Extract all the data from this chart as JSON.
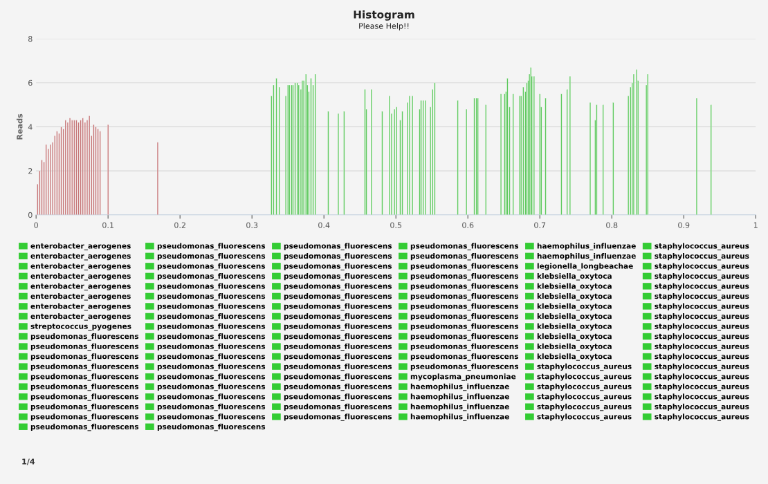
{
  "chart_data": {
    "type": "bar",
    "title": "Histogram",
    "subtitle": "Please Help!!",
    "ylabel": "Reads",
    "xlim": [
      0,
      1
    ],
    "xticks": [
      0,
      0.1,
      0.2,
      0.3,
      0.4,
      0.5,
      0.6,
      0.7,
      0.8,
      0.9,
      1
    ],
    "ylim": [
      0,
      8
    ],
    "yticks": [
      0,
      2,
      4,
      6,
      8
    ],
    "grid": "y",
    "legend": "bottom",
    "annotations": [
      "1/4"
    ],
    "series": [
      {
        "color": "#b9585a",
        "x": [
          0.002,
          0.005,
          0.008,
          0.011,
          0.014,
          0.017,
          0.02,
          0.023,
          0.026,
          0.029,
          0.032,
          0.035,
          0.038,
          0.041,
          0.044,
          0.047,
          0.05,
          0.053,
          0.056,
          0.059,
          0.062,
          0.065,
          0.068,
          0.071,
          0.074,
          0.077,
          0.08,
          0.083,
          0.086,
          0.089,
          0.1,
          0.169
        ],
        "values": [
          1.4,
          2.0,
          2.5,
          2.4,
          3.2,
          3.0,
          3.2,
          3.3,
          3.6,
          3.8,
          3.7,
          4.0,
          3.9,
          4.3,
          4.2,
          4.4,
          4.3,
          4.3,
          4.3,
          4.2,
          4.3,
          4.4,
          4.2,
          4.3,
          4.5,
          3.6,
          4.1,
          4.0,
          3.9,
          3.8,
          4.1,
          3.3
        ]
      },
      {
        "color": "#3fbf3f",
        "x": [
          0.327,
          0.33,
          0.334,
          0.338,
          0.347,
          0.35,
          0.352,
          0.355,
          0.357,
          0.36,
          0.363,
          0.365,
          0.368,
          0.37,
          0.372,
          0.375,
          0.377,
          0.379,
          0.382,
          0.385,
          0.388,
          0.406,
          0.42,
          0.428,
          0.457,
          0.459,
          0.466,
          0.481,
          0.491,
          0.494,
          0.498,
          0.501,
          0.506,
          0.509,
          0.516,
          0.519,
          0.523,
          0.533,
          0.535,
          0.538,
          0.541,
          0.548,
          0.551,
          0.554,
          0.586,
          0.598,
          0.609,
          0.612,
          0.614,
          0.625,
          0.646,
          0.651,
          0.653,
          0.655,
          0.658,
          0.663,
          0.672,
          0.674,
          0.677,
          0.68,
          0.682,
          0.684,
          0.6855,
          0.6875,
          0.689,
          0.692,
          0.7,
          0.702,
          0.708,
          0.73,
          0.738,
          0.742,
          0.77,
          0.777,
          0.779,
          0.788,
          0.802,
          0.823,
          0.826,
          0.8285,
          0.8305,
          0.8345,
          0.8365,
          0.848,
          0.85,
          0.918,
          0.938
        ],
        "values": [
          5.4,
          5.9,
          6.2,
          5.8,
          5.4,
          5.9,
          5.9,
          5.9,
          5.9,
          6.0,
          6.0,
          5.9,
          5.7,
          6.1,
          6.1,
          6.4,
          5.9,
          5.6,
          6.2,
          5.9,
          6.4,
          4.7,
          4.6,
          4.7,
          5.7,
          4.8,
          5.7,
          4.7,
          5.4,
          4.6,
          4.8,
          4.9,
          4.3,
          4.7,
          5.1,
          5.4,
          5.4,
          4.8,
          5.2,
          5.2,
          5.2,
          4.9,
          5.7,
          6.0,
          5.2,
          4.8,
          5.3,
          5.3,
          5.3,
          5.0,
          5.5,
          5.5,
          5.6,
          6.2,
          4.9,
          5.5,
          5.4,
          5.4,
          5.8,
          5.6,
          6.0,
          6.1,
          6.4,
          6.7,
          6.3,
          6.3,
          5.5,
          4.9,
          5.3,
          5.5,
          5.7,
          6.3,
          5.1,
          4.3,
          5.0,
          5.0,
          5.1,
          5.4,
          5.8,
          6.0,
          6.4,
          6.6,
          6.1,
          5.9,
          6.4,
          5.3,
          5.0
        ]
      },
      {
        "name": "enterobacter_aerogenes",
        "color": "#33cc33"
      },
      {
        "name": "enterobacter_aerogenes",
        "color": "#33cc33"
      },
      {
        "name": "enterobacter_aerogenes",
        "color": "#33cc33"
      },
      {
        "name": "enterobacter_aerogenes",
        "color": "#33cc33"
      },
      {
        "name": "enterobacter_aerogenes",
        "color": "#33cc33"
      },
      {
        "name": "enterobacter_aerogenes",
        "color": "#33cc33"
      },
      {
        "name": "enterobacter_aerogenes",
        "color": "#33cc33"
      },
      {
        "name": "enterobacter_aerogenes",
        "color": "#33cc33"
      },
      {
        "name": "streptococcus_pyogenes",
        "color": "#33cc33"
      },
      {
        "name": "pseudomonas_fluorescens",
        "color": "#33cc33"
      },
      {
        "name": "pseudomonas_fluorescens",
        "color": "#33cc33"
      },
      {
        "name": "pseudomonas_fluorescens",
        "color": "#33cc33"
      },
      {
        "name": "pseudomonas_fluorescens",
        "color": "#33cc33"
      },
      {
        "name": "pseudomonas_fluorescens",
        "color": "#33cc33"
      },
      {
        "name": "pseudomonas_fluorescens",
        "color": "#33cc33"
      },
      {
        "name": "pseudomonas_fluorescens",
        "color": "#33cc33"
      },
      {
        "name": "pseudomonas_fluorescens",
        "color": "#33cc33"
      },
      {
        "name": "pseudomonas_fluorescens",
        "color": "#33cc33"
      },
      {
        "name": "pseudomonas_fluorescens",
        "color": "#33cc33"
      },
      {
        "name": "pseudomonas_fluorescens",
        "color": "#33cc33"
      },
      {
        "name": "pseudomonas_fluorescens",
        "color": "#33cc33"
      },
      {
        "name": "pseudomonas_fluorescens",
        "color": "#33cc33"
      },
      {
        "name": "pseudomonas_fluorescens",
        "color": "#33cc33"
      },
      {
        "name": "pseudomonas_fluorescens",
        "color": "#33cc33"
      },
      {
        "name": "pseudomonas_fluorescens",
        "color": "#33cc33"
      },
      {
        "name": "pseudomonas_fluorescens",
        "color": "#33cc33"
      },
      {
        "name": "pseudomonas_fluorescens",
        "color": "#33cc33"
      },
      {
        "name": "pseudomonas_fluorescens",
        "color": "#33cc33"
      },
      {
        "name": "pseudomonas_fluorescens",
        "color": "#33cc33"
      },
      {
        "name": "pseudomonas_fluorescens",
        "color": "#33cc33"
      },
      {
        "name": "pseudomonas_fluorescens",
        "color": "#33cc33"
      },
      {
        "name": "pseudomonas_fluorescens",
        "color": "#33cc33"
      },
      {
        "name": "pseudomonas_fluorescens",
        "color": "#33cc33"
      },
      {
        "name": "pseudomonas_fluorescens",
        "color": "#33cc33"
      },
      {
        "name": "pseudomonas_fluorescens",
        "color": "#33cc33"
      },
      {
        "name": "pseudomonas_fluorescens",
        "color": "#33cc33"
      },
      {
        "name": "pseudomonas_fluorescens",
        "color": "#33cc33"
      },
      {
        "name": "pseudomonas_fluorescens",
        "color": "#33cc33"
      },
      {
        "name": "pseudomonas_fluorescens",
        "color": "#33cc33"
      },
      {
        "name": "pseudomonas_fluorescens",
        "color": "#33cc33"
      },
      {
        "name": "pseudomonas_fluorescens",
        "color": "#33cc33"
      },
      {
        "name": "pseudomonas_fluorescens",
        "color": "#33cc33"
      },
      {
        "name": "pseudomonas_fluorescens",
        "color": "#33cc33"
      },
      {
        "name": "pseudomonas_fluorescens",
        "color": "#33cc33"
      },
      {
        "name": "pseudomonas_fluorescens",
        "color": "#33cc33"
      },
      {
        "name": "pseudomonas_fluorescens",
        "color": "#33cc33"
      },
      {
        "name": "pseudomonas_fluorescens",
        "color": "#33cc33"
      },
      {
        "name": "pseudomonas_fluorescens",
        "color": "#33cc33"
      },
      {
        "name": "pseudomonas_fluorescens",
        "color": "#33cc33"
      },
      {
        "name": "pseudomonas_fluorescens",
        "color": "#33cc33"
      },
      {
        "name": "pseudomonas_fluorescens",
        "color": "#33cc33"
      },
      {
        "name": "pseudomonas_fluorescens",
        "color": "#33cc33"
      },
      {
        "name": "pseudomonas_fluorescens",
        "color": "#33cc33"
      },
      {
        "name": "pseudomonas_fluorescens",
        "color": "#33cc33"
      },
      {
        "name": "pseudomonas_fluorescens",
        "color": "#33cc33"
      },
      {
        "name": "pseudomonas_fluorescens",
        "color": "#33cc33"
      },
      {
        "name": "pseudomonas_fluorescens",
        "color": "#33cc33"
      },
      {
        "name": "pseudomonas_fluorescens",
        "color": "#33cc33"
      },
      {
        "name": "pseudomonas_fluorescens",
        "color": "#33cc33"
      },
      {
        "name": "pseudomonas_fluorescens",
        "color": "#33cc33"
      },
      {
        "name": "pseudomonas_fluorescens",
        "color": "#33cc33"
      },
      {
        "name": "pseudomonas_fluorescens",
        "color": "#33cc33"
      },
      {
        "name": "pseudomonas_fluorescens",
        "color": "#33cc33"
      },
      {
        "name": "pseudomonas_fluorescens",
        "color": "#33cc33"
      },
      {
        "name": "pseudomonas_fluorescens",
        "color": "#33cc33"
      },
      {
        "name": "pseudomonas_fluorescens",
        "color": "#33cc33"
      },
      {
        "name": "pseudomonas_fluorescens",
        "color": "#33cc33"
      },
      {
        "name": "pseudomonas_fluorescens",
        "color": "#33cc33"
      },
      {
        "name": "pseudomonas_fluorescens",
        "color": "#33cc33"
      },
      {
        "name": "mycoplasma_pneumoniae",
        "color": "#33cc33"
      },
      {
        "name": "haemophilus_influenzae",
        "color": "#33cc33"
      },
      {
        "name": "haemophilus_influenzae",
        "color": "#33cc33"
      },
      {
        "name": "haemophilus_influenzae",
        "color": "#33cc33"
      },
      {
        "name": "haemophilus_influenzae",
        "color": "#33cc33"
      },
      {
        "name": "haemophilus_influenzae",
        "color": "#33cc33"
      },
      {
        "name": "haemophilus_influenzae",
        "color": "#33cc33"
      },
      {
        "name": "legionella_longbeachae",
        "color": "#33cc33"
      },
      {
        "name": "klebsiella_oxytoca",
        "color": "#33cc33"
      },
      {
        "name": "klebsiella_oxytoca",
        "color": "#33cc33"
      },
      {
        "name": "klebsiella_oxytoca",
        "color": "#33cc33"
      },
      {
        "name": "klebsiella_oxytoca",
        "color": "#33cc33"
      },
      {
        "name": "klebsiella_oxytoca",
        "color": "#33cc33"
      },
      {
        "name": "klebsiella_oxytoca",
        "color": "#33cc33"
      },
      {
        "name": "klebsiella_oxytoca",
        "color": "#33cc33"
      },
      {
        "name": "klebsiella_oxytoca",
        "color": "#33cc33"
      },
      {
        "name": "klebsiella_oxytoca",
        "color": "#33cc33"
      },
      {
        "name": "staphylococcus_aureus",
        "color": "#33cc33"
      },
      {
        "name": "staphylococcus_aureus",
        "color": "#33cc33"
      },
      {
        "name": "staphylococcus_aureus",
        "color": "#33cc33"
      },
      {
        "name": "staphylococcus_aureus",
        "color": "#33cc33"
      },
      {
        "name": "staphylococcus_aureus",
        "color": "#33cc33"
      },
      {
        "name": "staphylococcus_aureus",
        "color": "#33cc33"
      },
      {
        "name": "staphylococcus_aureus",
        "color": "#33cc33"
      },
      {
        "name": "staphylococcus_aureus",
        "color": "#33cc33"
      },
      {
        "name": "staphylococcus_aureus",
        "color": "#33cc33"
      },
      {
        "name": "staphylococcus_aureus",
        "color": "#33cc33"
      },
      {
        "name": "staphylococcus_aureus",
        "color": "#33cc33"
      },
      {
        "name": "staphylococcus_aureus",
        "color": "#33cc33"
      },
      {
        "name": "staphylococcus_aureus",
        "color": "#33cc33"
      },
      {
        "name": "staphylococcus_aureus",
        "color": "#33cc33"
      },
      {
        "name": "staphylococcus_aureus",
        "color": "#33cc33"
      },
      {
        "name": "staphylococcus_aureus",
        "color": "#33cc33"
      },
      {
        "name": "staphylococcus_aureus",
        "color": "#33cc33"
      },
      {
        "name": "staphylococcus_aureus",
        "color": "#33cc33"
      },
      {
        "name": "staphylococcus_aureus",
        "color": "#33cc33"
      },
      {
        "name": "staphylococcus_aureus",
        "color": "#33cc33"
      },
      {
        "name": "staphylococcus_aureus",
        "color": "#33cc33"
      },
      {
        "name": "staphylococcus_aureus",
        "color": "#33cc33"
      },
      {
        "name": "staphylococcus_aureus",
        "color": "#33cc33"
      },
      {
        "name": "staphylococcus_aureus",
        "color": "#33cc33"
      }
    ]
  }
}
